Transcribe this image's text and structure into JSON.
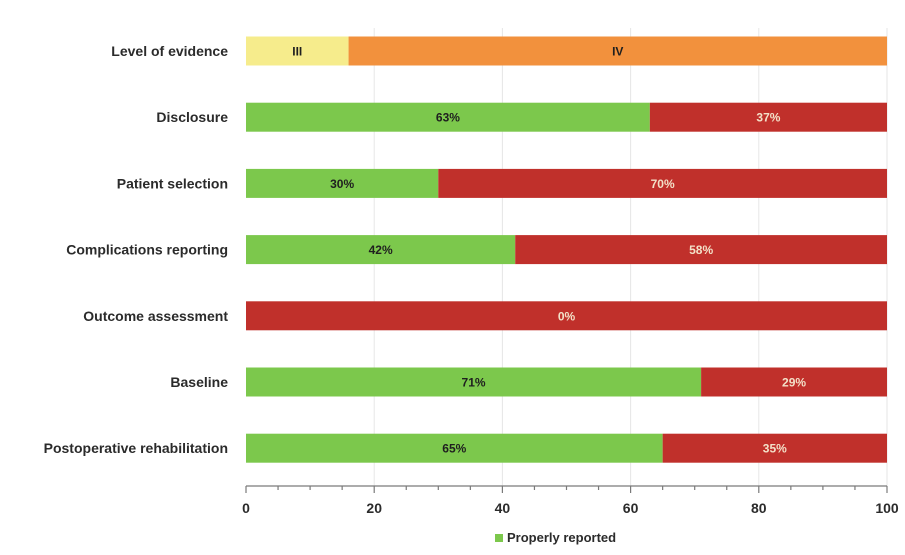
{
  "chart_data": {
    "type": "bar",
    "orientation": "horizontal",
    "stacked": true,
    "xlim": [
      0,
      100
    ],
    "xticks": [
      0,
      20,
      40,
      60,
      80,
      100
    ],
    "grid": true,
    "legend_position": "bottom",
    "colors": {
      "grade_iii": "#f6ec8c",
      "grade_iv": "#f2913d",
      "properly": "#7cc84c",
      "not_properly": "#c0302b"
    },
    "rows": [
      {
        "category": "Level of evidence",
        "segments": [
          {
            "value": 16,
            "label": "III",
            "color_key": "grade_iii"
          },
          {
            "value": 84,
            "label": "IV",
            "color_key": "grade_iv"
          }
        ]
      },
      {
        "category": "Disclosure",
        "segments": [
          {
            "value": 63,
            "label": "63%",
            "color_key": "properly"
          },
          {
            "value": 37,
            "label": "37%",
            "color_key": "not_properly"
          }
        ]
      },
      {
        "category": "Patient selection",
        "segments": [
          {
            "value": 30,
            "label": "30%",
            "color_key": "properly"
          },
          {
            "value": 70,
            "label": "70%",
            "color_key": "not_properly"
          }
        ]
      },
      {
        "category": "Complications reporting",
        "segments": [
          {
            "value": 42,
            "label": "42%",
            "color_key": "properly"
          },
          {
            "value": 58,
            "label": "58%",
            "color_key": "not_properly"
          }
        ]
      },
      {
        "category": "Outcome assessment",
        "segments": [
          {
            "value": 0,
            "label": "",
            "color_key": "properly"
          },
          {
            "value": 100,
            "label": "0%",
            "color_key": "not_properly"
          }
        ]
      },
      {
        "category": "Baseline",
        "segments": [
          {
            "value": 71,
            "label": "71%",
            "color_key": "properly"
          },
          {
            "value": 29,
            "label": "29%",
            "color_key": "not_properly"
          }
        ]
      },
      {
        "category": "Postoperative rehabilitation",
        "segments": [
          {
            "value": 65,
            "label": "65%",
            "color_key": "properly"
          },
          {
            "value": 35,
            "label": "35%",
            "color_key": "not_properly"
          }
        ]
      }
    ],
    "legend": [
      {
        "label": "Properly reported",
        "color_key": "properly"
      }
    ]
  }
}
